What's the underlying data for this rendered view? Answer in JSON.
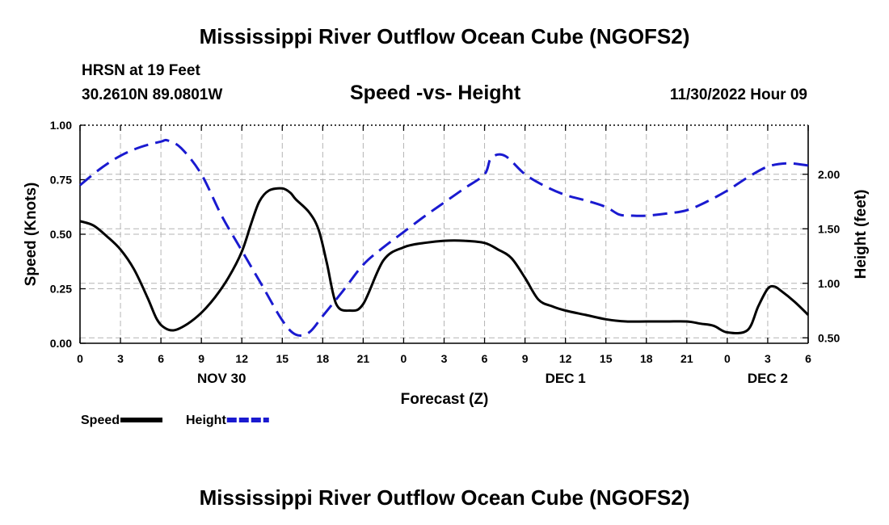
{
  "page": {
    "title_top": "Mississippi River Outflow Ocean Cube (NGOFS2)",
    "title_bottom": "Mississippi River Outflow Ocean Cube (NGOFS2)",
    "station": "HRSN at 19 Feet",
    "coords": "30.2610N  89.0801W",
    "subtitle": "Speed -vs- Height",
    "timestamp": "11/30/2022 Hour 09"
  },
  "chart_data": {
    "type": "line",
    "title": "Speed -vs- Height",
    "xlabel": "Forecast (Z)",
    "ylabel": "Speed (Knots)",
    "y2label": "Height (feet)",
    "xlim": [
      0,
      54
    ],
    "ylim": [
      0,
      1.0
    ],
    "y2lim": [
      0.45,
      2.45
    ],
    "grid": true,
    "x_ticks": [
      0,
      3,
      6,
      9,
      12,
      15,
      18,
      21,
      24,
      27,
      30,
      33,
      36,
      39,
      42,
      45,
      48,
      51,
      54
    ],
    "x_tick_labels": [
      "0",
      "3",
      "6",
      "9",
      "12",
      "15",
      "18",
      "21",
      "0",
      "3",
      "6",
      "9",
      "12",
      "15",
      "18",
      "21",
      "0",
      "3",
      "6"
    ],
    "y_ticks": [
      0,
      0.25,
      0.5,
      0.75,
      1.0
    ],
    "y_tick_labels": [
      "0.00",
      "0.25",
      "0.50",
      "0.75",
      "1.00"
    ],
    "y2_ticks": [
      0.5,
      1.0,
      1.5,
      2.0
    ],
    "y2_tick_labels": [
      "0.50",
      "1.00",
      "1.50",
      "2.00"
    ],
    "date_labels": [
      {
        "x": 10.5,
        "label": "NOV 30"
      },
      {
        "x": 36,
        "label": "DEC 1"
      },
      {
        "x": 51,
        "label": "DEC 2"
      }
    ],
    "legend": [
      {
        "name": "Speed",
        "color": "#000000",
        "dash": "solid"
      },
      {
        "name": "Height",
        "color": "#1a1ad0",
        "dash": "dashed"
      }
    ],
    "series": [
      {
        "name": "Speed",
        "axis": "left",
        "color": "#000000",
        "x": [
          0,
          1,
          2,
          3,
          4,
          5,
          5.7,
          6.3,
          7,
          8,
          9,
          10,
          11,
          12,
          12.7,
          13.3,
          14,
          15,
          15.6,
          16,
          17,
          17.7,
          18.3,
          19,
          20,
          21,
          22.5,
          24,
          25.5,
          27,
          28.5,
          30,
          31,
          32,
          33,
          34,
          35,
          36,
          37.5,
          39,
          40.5,
          42,
          43.5,
          45,
          46,
          47,
          48,
          49.5,
          50.3,
          51,
          51.5,
          52,
          53,
          54
        ],
        "values": [
          0.56,
          0.54,
          0.49,
          0.43,
          0.34,
          0.21,
          0.11,
          0.07,
          0.06,
          0.09,
          0.14,
          0.21,
          0.3,
          0.42,
          0.55,
          0.65,
          0.7,
          0.71,
          0.69,
          0.66,
          0.6,
          0.52,
          0.37,
          0.18,
          0.15,
          0.18,
          0.38,
          0.44,
          0.46,
          0.47,
          0.47,
          0.46,
          0.43,
          0.39,
          0.3,
          0.2,
          0.17,
          0.15,
          0.13,
          0.11,
          0.1,
          0.1,
          0.1,
          0.1,
          0.09,
          0.08,
          0.05,
          0.06,
          0.17,
          0.25,
          0.26,
          0.24,
          0.19,
          0.13
        ]
      },
      {
        "name": "Height",
        "axis": "right",
        "color": "#1a1ad0",
        "x": [
          0,
          1.5,
          3,
          4.5,
          6,
          6.5,
          7.5,
          9,
          10.5,
          12,
          13.5,
          15,
          16,
          17,
          18,
          19.5,
          21,
          22.5,
          24,
          25.5,
          27,
          28.5,
          30,
          30.5,
          31.5,
          33,
          34.5,
          36,
          37.5,
          39,
          40,
          41,
          42,
          43.5,
          45,
          46.5,
          48,
          49.5,
          51,
          52.5,
          54
        ],
        "values": [
          1.9,
          2.05,
          2.17,
          2.25,
          2.3,
          2.31,
          2.24,
          2.0,
          1.62,
          1.3,
          0.98,
          0.66,
          0.53,
          0.55,
          0.7,
          0.93,
          1.17,
          1.33,
          1.47,
          1.61,
          1.74,
          1.87,
          2.0,
          2.15,
          2.17,
          2.0,
          1.89,
          1.81,
          1.76,
          1.7,
          1.63,
          1.62,
          1.62,
          1.64,
          1.67,
          1.75,
          1.85,
          1.97,
          2.07,
          2.1,
          2.08
        ]
      }
    ]
  }
}
